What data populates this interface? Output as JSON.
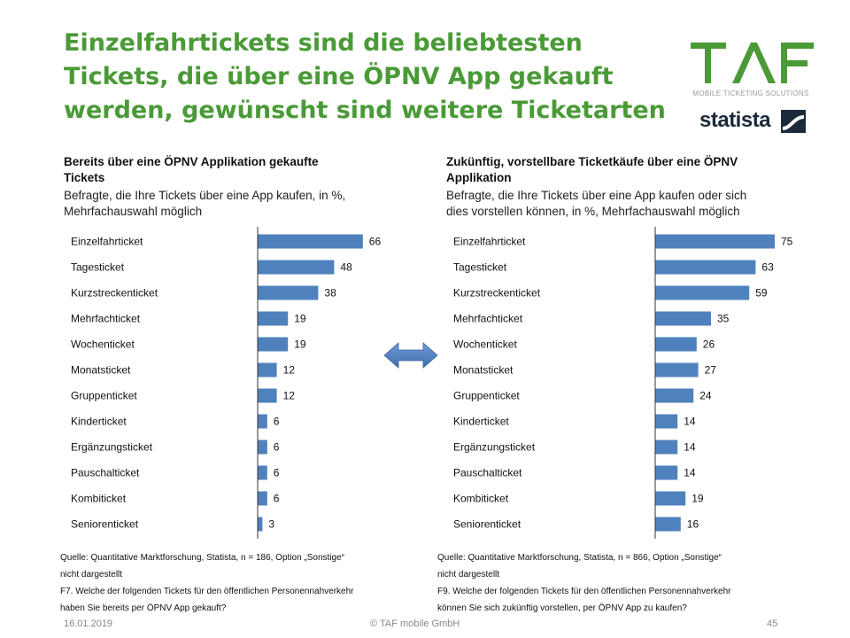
{
  "title": {
    "line1": "Einzelfahrtickets sind die beliebtesten",
    "line2": "Tickets, die über eine ÖPNV App gekauft",
    "line3": "werden, gewünscht sind weitere Ticketarten"
  },
  "logo": {
    "taf": "TAF",
    "subtitle": "MOBILE TICKETING SOLUTIONS",
    "statista": "statista",
    "green": "#4a9a37"
  },
  "bar_color": "#4f81bd",
  "arrow_icon": "double-arrow-icon",
  "left": {
    "heading1": "Bereits über eine ÖPNV Applikation gekaufte",
    "heading2": "Tickets",
    "sub1": "Befragte, die Ihre Tickets über eine App kaufen, in %,",
    "sub2": "Mehrfachauswahl möglich",
    "source1": "Quelle: Quantitative Marktforschung, Statista, n = 186, Option „Sonstige“",
    "source2": "nicht dargestellt",
    "source3": "F7. Welche der folgenden Tickets für den öffentlichen Personennahverkehr",
    "source4": "haben Sie bereits per ÖPNV App gekauft?"
  },
  "right": {
    "heading1": "Zukünftig, vorstellbare Ticketkäufe über eine ÖPNV",
    "heading2": "Applikation",
    "sub1": "Befragte, die Ihre Tickets über eine App kaufen oder sich",
    "sub2": "dies vorstellen können, in %, Mehrfachauswahl möglich",
    "source1": "Quelle: Quantitative Marktforschung, Statista, n = 866, Option „Sonstige“",
    "source2": "nicht dargestellt",
    "source3": "F9. Welche der folgenden Tickets für den öffentlichen Personennahverkehr",
    "source4": "können Sie sich zukünftig vorstellen, per ÖPNV App zu kaufen?"
  },
  "footer": {
    "date": "16.01.2019",
    "copyright": "© TAF mobile GmbH",
    "page": "45"
  },
  "chart_data": [
    {
      "type": "bar",
      "orientation": "horizontal",
      "categories": [
        "Einzelfahrticket",
        "Tagesticket",
        "Kurzstreckenticket",
        "Mehrfachticket",
        "Wochenticket",
        "Monatsticket",
        "Gruppenticket",
        "Kinderticket",
        "Ergänzungsticket",
        "Pauschalticket",
        "Kombiticket",
        "Seniorenticket"
      ],
      "values": [
        66,
        48,
        38,
        19,
        19,
        12,
        12,
        6,
        6,
        6,
        6,
        3
      ],
      "xlim": [
        0,
        100
      ],
      "grid": false,
      "data_labels": true
    },
    {
      "type": "bar",
      "orientation": "horizontal",
      "categories": [
        "Einzelfahrticket",
        "Tagesticket",
        "Kurzstreckenticket",
        "Mehrfachticket",
        "Wochenticket",
        "Monatsticket",
        "Gruppenticket",
        "Kinderticket",
        "Ergänzungsticket",
        "Pauschalticket",
        "Kombiticket",
        "Seniorenticket"
      ],
      "values": [
        75,
        63,
        59,
        35,
        26,
        27,
        24,
        14,
        14,
        14,
        19,
        16
      ],
      "xlim": [
        0,
        100
      ],
      "grid": false,
      "data_labels": true
    }
  ]
}
